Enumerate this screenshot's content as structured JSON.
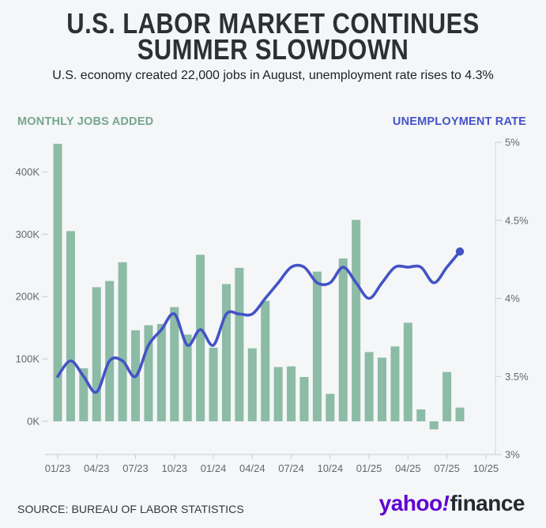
{
  "header": {
    "title_line1": "U.S. LABOR MARKET CONTINUES",
    "title_line2": "SUMMER SLOWDOWN",
    "subtitle": "U.S. economy created 22,000 jobs in August, unemployment rate rises to 4.3%"
  },
  "legend": {
    "left_label": "MONTHLY JOBS ADDED",
    "left_color": "#76a78f",
    "right_label": "UNEMPLOYMENT RATE",
    "right_color": "#4453c8"
  },
  "chart_data": {
    "type": "bar",
    "subtype": "bar+line dual axis",
    "months": [
      "01/23",
      "02/23",
      "03/23",
      "04/23",
      "05/23",
      "06/23",
      "07/23",
      "08/23",
      "09/23",
      "10/23",
      "11/23",
      "12/23",
      "01/24",
      "02/24",
      "03/24",
      "04/24",
      "05/24",
      "06/24",
      "07/24",
      "08/24",
      "09/24",
      "10/24",
      "11/24",
      "12/24",
      "01/25",
      "02/25",
      "03/25",
      "04/25",
      "05/25",
      "06/25",
      "07/25",
      "08/25"
    ],
    "series": [
      {
        "name": "Monthly jobs added",
        "type": "bar",
        "axis": "left",
        "unit": "thousands of jobs",
        "color": "#8cbba6",
        "values": [
          445,
          305,
          85,
          215,
          225,
          255,
          146,
          154,
          156,
          183,
          139,
          267,
          118,
          220,
          246,
          117,
          193,
          87,
          88,
          71,
          240,
          44,
          261,
          323,
          111,
          102,
          120,
          158,
          19,
          -13,
          79,
          22
        ]
      },
      {
        "name": "Unemployment rate",
        "type": "line",
        "axis": "right",
        "unit": "percent",
        "color": "#4353c5",
        "end_dot": true,
        "values": [
          3.5,
          3.6,
          3.5,
          3.4,
          3.6,
          3.6,
          3.5,
          3.7,
          3.8,
          3.9,
          3.7,
          3.8,
          3.7,
          3.9,
          3.9,
          3.9,
          4.0,
          4.1,
          4.2,
          4.2,
          4.1,
          4.1,
          4.2,
          4.1,
          4.0,
          4.1,
          4.2,
          4.2,
          4.2,
          4.1,
          4.2,
          4.3
        ]
      }
    ],
    "left_axis": {
      "title": "MONTHLY JOBS ADDED",
      "ticks": [
        {
          "label": "0K",
          "value": 0
        },
        {
          "label": "100K",
          "value": 100
        },
        {
          "label": "200K",
          "value": 200
        },
        {
          "label": "300K",
          "value": 300
        },
        {
          "label": "400K",
          "value": 400
        }
      ]
    },
    "right_axis": {
      "title": "UNEMPLOYMENT RATE",
      "range_pct": [
        3,
        5
      ],
      "ticks": [
        {
          "label": "3%",
          "value": 3.0
        },
        {
          "label": "3.5%",
          "value": 3.5
        },
        {
          "label": "4%",
          "value": 4.0
        },
        {
          "label": "4.5%",
          "value": 4.5
        },
        {
          "label": "5%",
          "value": 5.0
        }
      ]
    },
    "x_axis": {
      "ticks": [
        {
          "label": "01/23",
          "month_index": 0
        },
        {
          "label": "04/23",
          "month_index": 3
        },
        {
          "label": "07/23",
          "month_index": 6
        },
        {
          "label": "10/23",
          "month_index": 9
        },
        {
          "label": "01/24",
          "month_index": 12
        },
        {
          "label": "04/24",
          "month_index": 15
        },
        {
          "label": "07/24",
          "month_index": 18
        },
        {
          "label": "10/24",
          "month_index": 21
        },
        {
          "label": "01/25",
          "month_index": 24
        },
        {
          "label": "04/25",
          "month_index": 27
        },
        {
          "label": "07/25",
          "month_index": 30
        },
        {
          "label": "10/25",
          "month_index": 33
        }
      ]
    },
    "grid": false,
    "legend_position": "top"
  },
  "footer": {
    "source": "SOURCE: BUREAU OF LABOR STATISTICS",
    "logo": {
      "yahoo": "yahoo",
      "bang": "!",
      "finance": "finance",
      "yahoo_color": "#5f01d2",
      "finance_color": "#232a31"
    }
  }
}
